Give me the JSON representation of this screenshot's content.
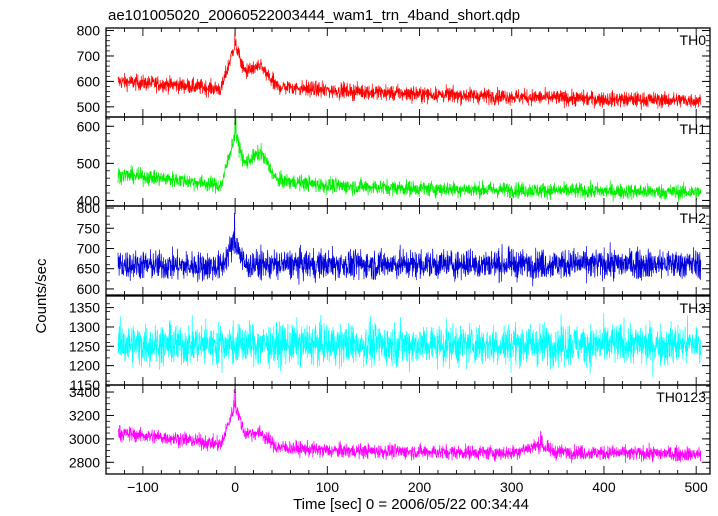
{
  "chart_data": {
    "type": "line",
    "title": "ae101005020_20060522003444_wam1_trn_4band_short.qdp",
    "xlabel": "Time [sec] 0 = 2006/05/22 00:34:44",
    "ylabel": "Counts/sec",
    "xlim": [
      -140,
      515
    ],
    "x_ticks": [
      "−100",
      "0",
      "100",
      "200",
      "300",
      "400",
      "500"
    ],
    "x_tick_values": [
      -100,
      0,
      100,
      200,
      300,
      400,
      500
    ],
    "x_data_range": [
      -127,
      505
    ],
    "grid": false,
    "panels": [
      {
        "name": "TH0",
        "color": "#ff0000",
        "ylim": [
          460,
          810
        ],
        "yticks": [
          500,
          600,
          700,
          800
        ],
        "baseline": [
          [
            -127,
            600
          ],
          [
            -60,
            585
          ],
          [
            -15,
            570
          ],
          [
            0,
            750
          ],
          [
            10,
            640
          ],
          [
            28,
            655
          ],
          [
            45,
            580
          ],
          [
            100,
            565
          ],
          [
            200,
            550
          ],
          [
            300,
            540
          ],
          [
            400,
            530
          ],
          [
            505,
            525
          ]
        ],
        "noise": 22,
        "peaks": [
          {
            "t": 0,
            "value": 800
          },
          {
            "t": 28,
            "value": 690
          }
        ]
      },
      {
        "name": "TH1",
        "color": "#00ee00",
        "ylim": [
          385,
          625
        ],
        "yticks": [
          400,
          500,
          600
        ],
        "baseline": [
          [
            -127,
            470
          ],
          [
            -60,
            455
          ],
          [
            -15,
            440
          ],
          [
            0,
            580
          ],
          [
            10,
            500
          ],
          [
            28,
            530
          ],
          [
            45,
            455
          ],
          [
            100,
            440
          ],
          [
            200,
            432
          ],
          [
            300,
            428
          ],
          [
            400,
            425
          ],
          [
            505,
            422
          ]
        ],
        "noise": 15,
        "peaks": [
          {
            "t": 0,
            "value": 625
          },
          {
            "t": 28,
            "value": 560
          }
        ]
      },
      {
        "name": "TH2",
        "color": "#0000dd",
        "ylim": [
          585,
          805
        ],
        "yticks": [
          600,
          650,
          700,
          750,
          800
        ],
        "baseline": [
          [
            -127,
            660
          ],
          [
            -15,
            655
          ],
          [
            0,
            720
          ],
          [
            10,
            660
          ],
          [
            505,
            662
          ]
        ],
        "noise": 26,
        "peaks": [
          {
            "t": 0,
            "value": 800
          }
        ]
      },
      {
        "name": "TH3",
        "color": "#00ffff",
        "ylim": [
          1150,
          1380
        ],
        "yticks": [
          1150,
          1200,
          1250,
          1300,
          1350
        ],
        "baseline": [
          [
            -127,
            1255
          ],
          [
            505,
            1255
          ]
        ],
        "noise": 38,
        "peaks": []
      },
      {
        "name": "TH0123",
        "color": "#ff00ff",
        "ylim": [
          2700,
          3460
        ],
        "yticks": [
          2800,
          3000,
          3200,
          3400
        ],
        "baseline": [
          [
            -127,
            3050
          ],
          [
            -60,
            3000
          ],
          [
            -15,
            2950
          ],
          [
            0,
            3300
          ],
          [
            10,
            3050
          ],
          [
            28,
            3050
          ],
          [
            45,
            2930
          ],
          [
            100,
            2900
          ],
          [
            200,
            2890
          ],
          [
            300,
            2880
          ],
          [
            330,
            2950
          ],
          [
            345,
            2890
          ],
          [
            400,
            2880
          ],
          [
            505,
            2870
          ]
        ],
        "noise": 45,
        "peaks": [
          {
            "t": 0,
            "value": 3440
          },
          {
            "t": 332,
            "value": 3070
          }
        ]
      }
    ]
  }
}
